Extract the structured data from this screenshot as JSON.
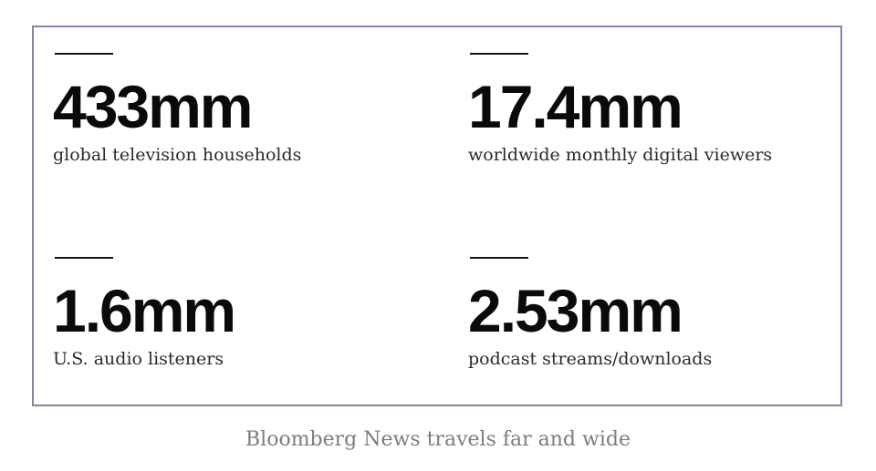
{
  "stats": [
    {
      "value": "433mm",
      "label": "global television households"
    },
    {
      "value": "17.4mm",
      "label": "worldwide monthly digital viewers"
    },
    {
      "value": "1.6mm",
      "label": "U.S. audio listeners"
    },
    {
      "value": "2.53mm",
      "label": "podcast streams/downloads"
    }
  ],
  "caption": "Bloomberg News travels far and wide",
  "colors": {
    "border": "#8e80a8",
    "value_text": "#0a0a0a",
    "caption_text": "#7d7d7d"
  }
}
